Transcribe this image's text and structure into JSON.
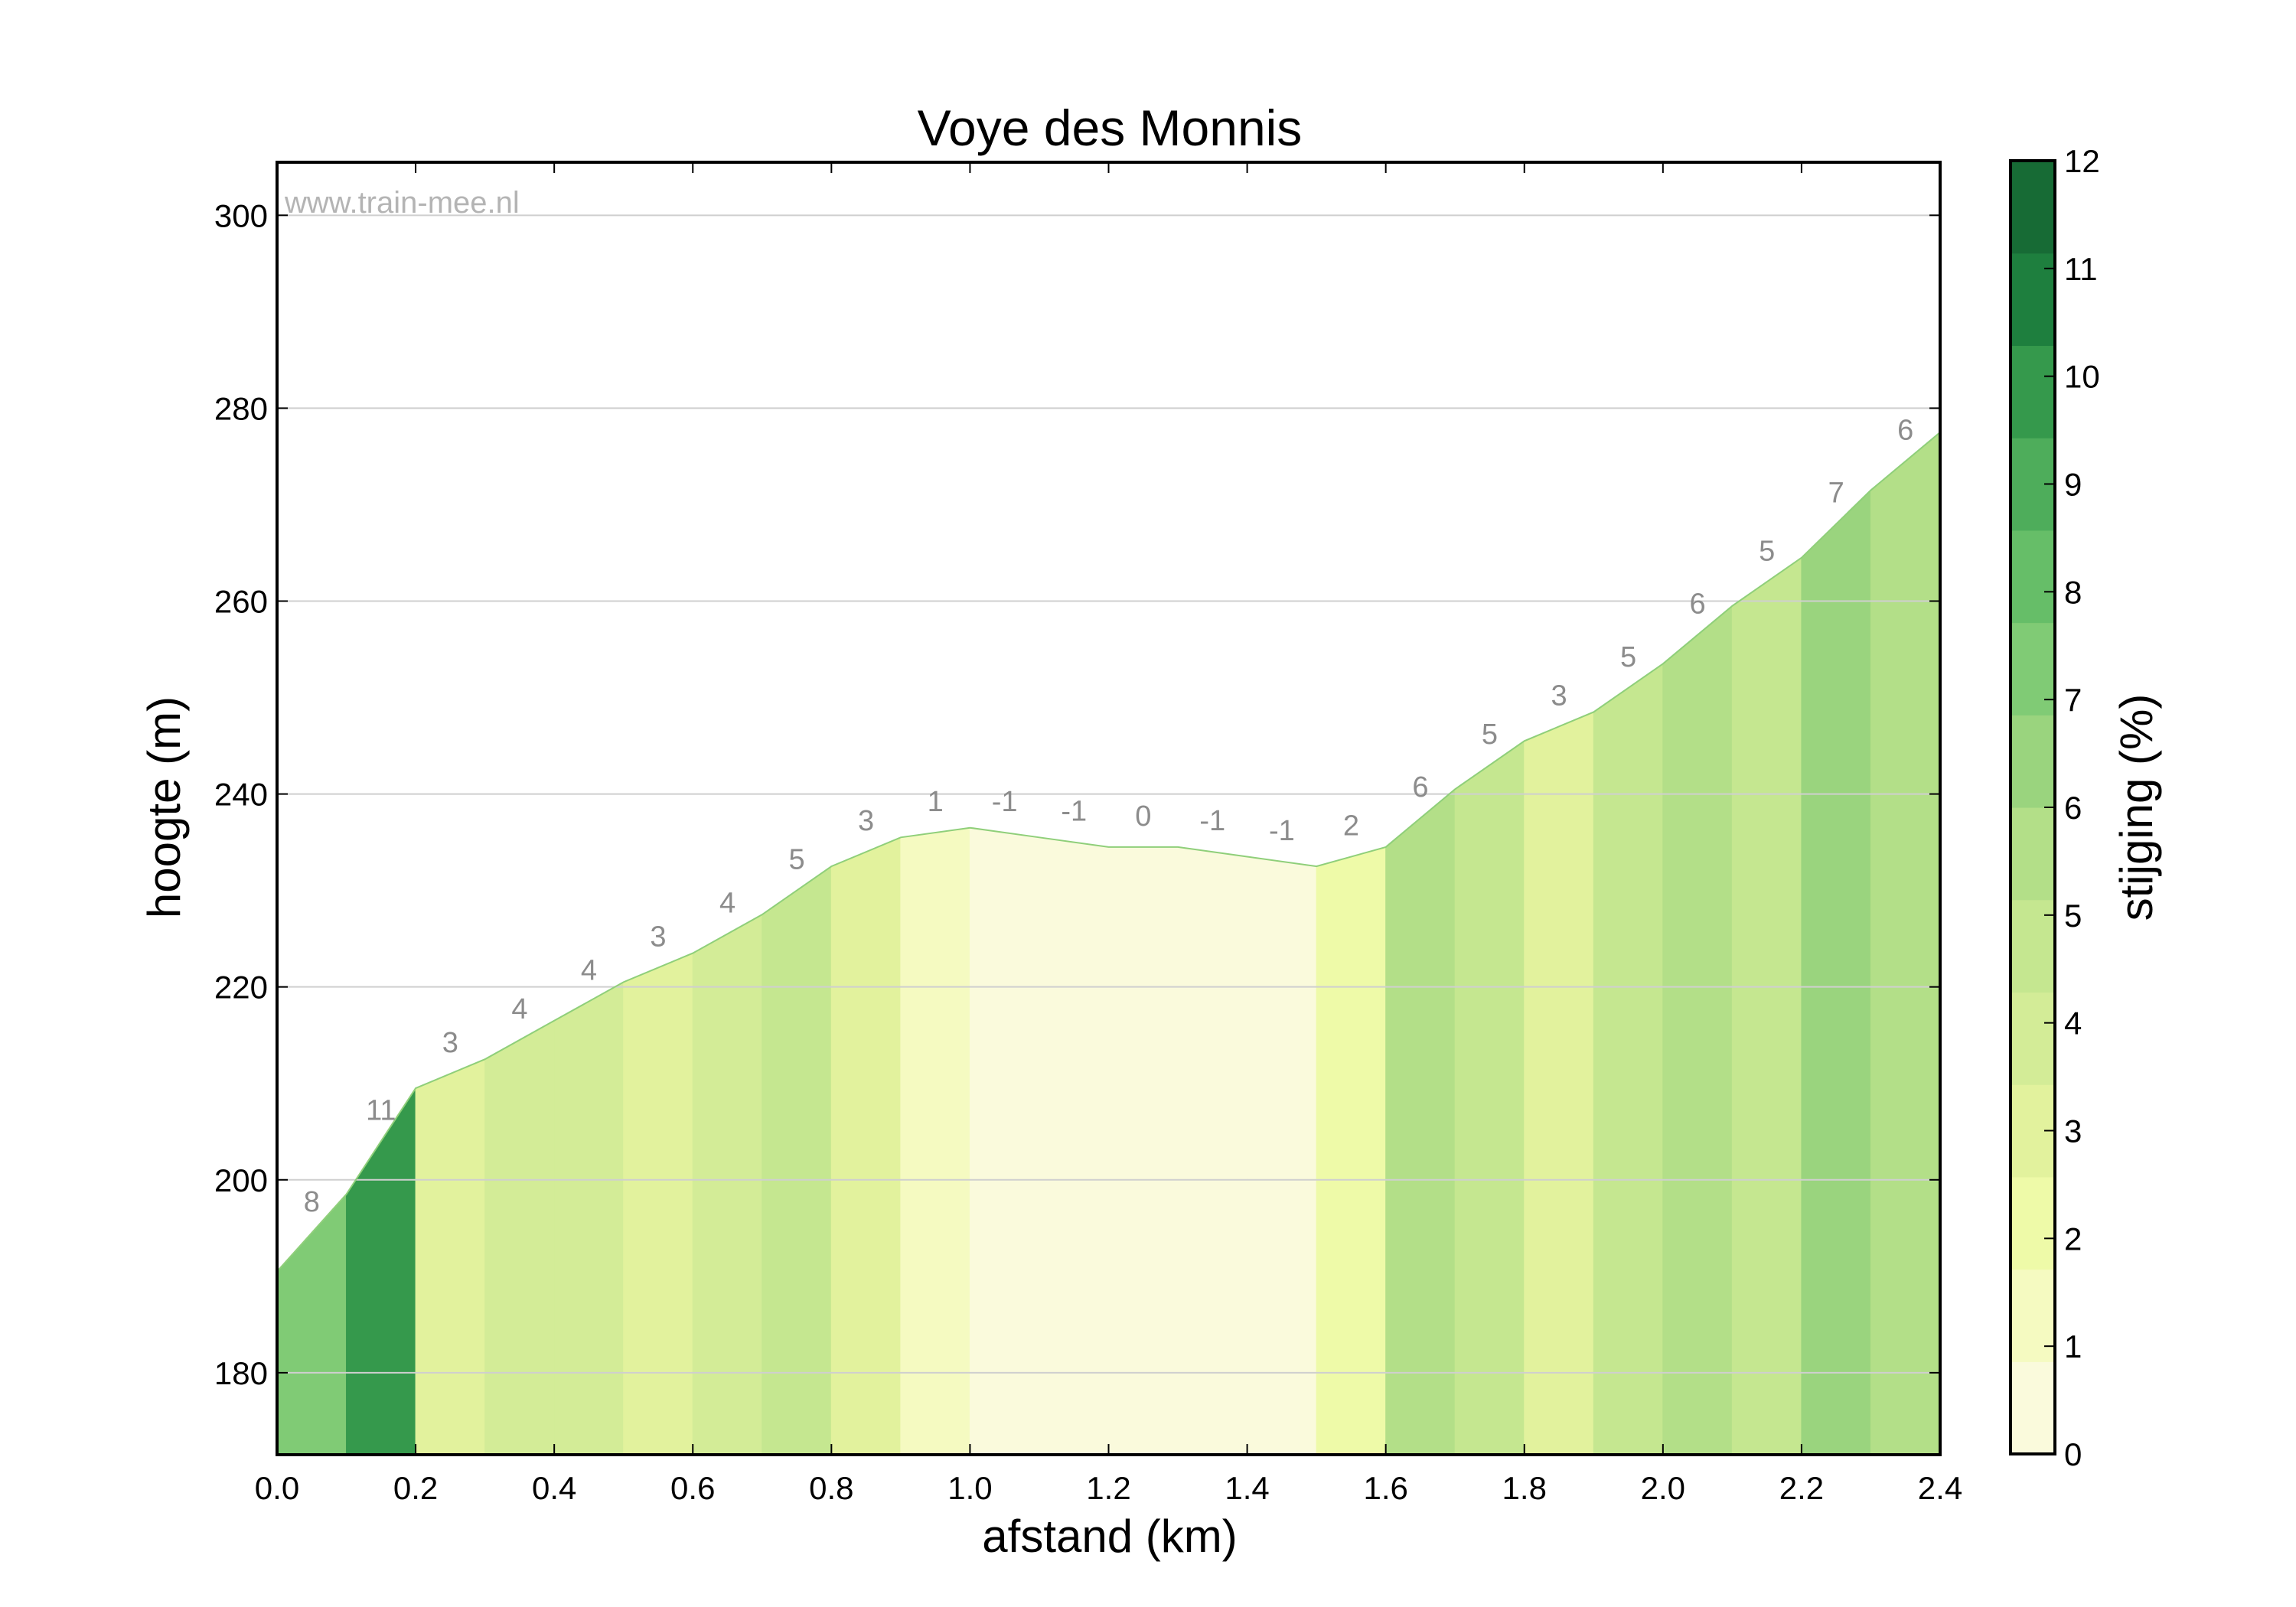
{
  "chart_data": {
    "type": "area",
    "title": "Voye des Monnis",
    "xlabel": "afstand (km)",
    "ylabel": "hoogte (m)",
    "watermark": "www.train-mee.nl",
    "xlim": [
      0.0,
      2.4
    ],
    "ylim": [
      171.5,
      305.5
    ],
    "x_ticks": [
      "0.0",
      "0.2",
      "0.4",
      "0.6",
      "0.8",
      "1.0",
      "1.2",
      "1.4",
      "1.6",
      "1.8",
      "2.0",
      "2.2",
      "2.4"
    ],
    "y_ticks": [
      "180",
      "200",
      "220",
      "240",
      "260",
      "280",
      "300"
    ],
    "grid": "horizontal",
    "x": [
      0.0,
      0.1,
      0.2,
      0.3,
      0.4,
      0.5,
      0.6,
      0.7,
      0.8,
      0.9,
      1.0,
      1.1,
      1.2,
      1.3,
      1.4,
      1.5,
      1.6,
      1.7,
      1.8,
      1.9,
      2.0,
      2.1,
      2.2,
      2.3,
      2.4
    ],
    "elevation": [
      190.5,
      198.5,
      209.5,
      212.5,
      216.5,
      220.5,
      223.5,
      227.5,
      232.5,
      235.5,
      236.5,
      235.5,
      234.5,
      234.5,
      233.5,
      232.5,
      234.5,
      240.5,
      245.5,
      248.5,
      253.5,
      259.5,
      264.5,
      271.5,
      277.5
    ],
    "segment_grades": [
      8,
      11,
      3,
      4,
      4,
      3,
      4,
      5,
      3,
      1,
      -1,
      -1,
      0,
      -1,
      -1,
      2,
      6,
      5,
      3,
      5,
      6,
      5,
      7,
      6
    ],
    "colorbar": {
      "label": "stijging (%)",
      "ticks": [
        "0",
        "1",
        "2",
        "3",
        "4",
        "5",
        "6",
        "7",
        "8",
        "9",
        "10",
        "11",
        "12"
      ],
      "bands": [
        "#fafadc",
        "#f5fac1",
        "#eefaa8",
        "#e2f29d",
        "#d3ec97",
        "#c5e790",
        "#b3df88",
        "#9ad47e",
        "#80cb75",
        "#66be68",
        "#4ead5b",
        "#35994c",
        "#1e7f3e",
        "#176b35"
      ]
    }
  }
}
